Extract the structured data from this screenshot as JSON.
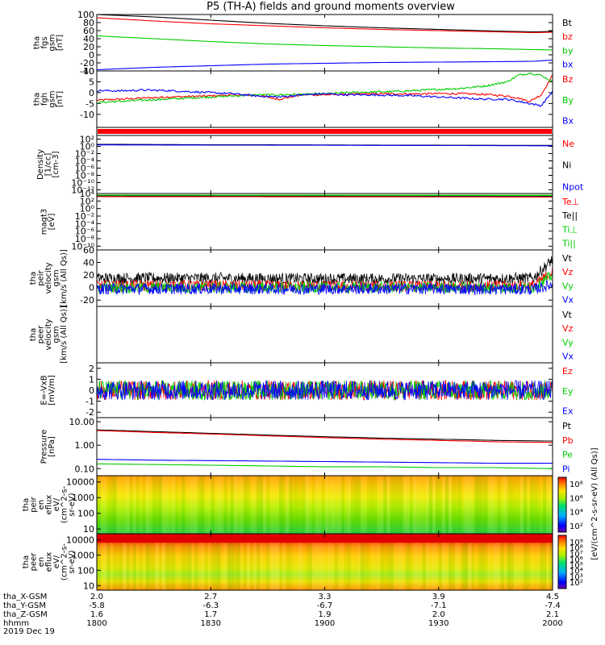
{
  "title": "P5 (TH-A) fields and ground moments overview",
  "chart_data": [
    {
      "type": "line",
      "panel": "fgs_gsm",
      "ylabel": [
        "tha",
        "fgs",
        "gsm",
        "[nT]"
      ],
      "ylim": [
        -40,
        100
      ],
      "yticks": [
        "100",
        "80",
        "60",
        "40",
        "20",
        "0",
        "-20",
        "-40"
      ],
      "ytick_values": [
        100,
        80,
        60,
        40,
        20,
        0,
        -20,
        -40
      ],
      "x": [
        1800,
        1815,
        1830,
        1845,
        1900,
        1915,
        1930,
        1945,
        1955,
        2000
      ],
      "series": [
        {
          "name": "Bt",
          "color": "#000000",
          "values": [
            100,
            94,
            86,
            78,
            72,
            67,
            63,
            59,
            57,
            58
          ]
        },
        {
          "name": "bz",
          "color": "#ff0000",
          "values": [
            92,
            84,
            77,
            72,
            67,
            63,
            60,
            57,
            55,
            56
          ]
        },
        {
          "name": "by",
          "color": "#00cc00",
          "values": [
            47,
            40,
            33,
            27,
            23,
            20,
            17,
            15,
            13,
            12
          ]
        },
        {
          "name": "bx",
          "color": "#0000ff",
          "values": [
            -37,
            -31,
            -27,
            -23,
            -21,
            -19,
            -18,
            -17,
            -16,
            -13
          ]
        }
      ]
    },
    {
      "type": "line",
      "panel": "fgh_gsm",
      "ylabel": [
        "tha",
        "fgh",
        "gsm",
        "[nT]"
      ],
      "ylim": [
        -16,
        10
      ],
      "yticks": [
        "10",
        "5",
        "0",
        "-5",
        "-10"
      ],
      "ytick_values": [
        10,
        5,
        0,
        -5,
        -10
      ],
      "x": [
        1800,
        1806,
        1812,
        1818,
        1824,
        1830,
        1836,
        1842,
        1848,
        1854,
        1900,
        1906,
        1912,
        1918,
        1924,
        1930,
        1936,
        1942,
        1948,
        1951,
        1954,
        1957,
        2000
      ],
      "series": [
        {
          "name": "Bz",
          "color": "#ff0000",
          "values": [
            -3.5,
            -3,
            -2.5,
            -2,
            -1.8,
            -1.5,
            -1,
            -1.2,
            -3,
            -1,
            -1,
            -0.8,
            -0.5,
            -0.5,
            -0.6,
            -0.4,
            -0.5,
            -0.8,
            -1.5,
            -2.5,
            -4,
            -1,
            8
          ]
        },
        {
          "name": "By",
          "color": "#00cc00",
          "values": [
            -4.5,
            -4,
            -3.5,
            -3,
            -2.5,
            -2,
            -1.5,
            -1,
            -1,
            -0.8,
            -0.5,
            0,
            0.3,
            0.5,
            1,
            1.5,
            2,
            3,
            5,
            8,
            9,
            8,
            5
          ]
        },
        {
          "name": "Bx",
          "color": "#0000ff",
          "values": [
            1,
            0.8,
            1.2,
            1,
            0.5,
            0,
            -0.5,
            -1.5,
            -2,
            -1,
            -0.5,
            -1,
            -1,
            -1.2,
            -1.5,
            -2,
            -2.5,
            -3,
            -3,
            -4,
            -5,
            -6,
            0.5
          ]
        }
      ]
    },
    {
      "type": "line",
      "panel": "density",
      "ylabel": [
        "Density",
        "[1/cc]",
        "[cm-3]"
      ],
      "scale": "log",
      "ylim": [
        1e-13,
        1000
      ],
      "yticks": [
        "10²",
        "10⁰",
        "10⁻²",
        "10⁻⁴",
        "10⁻⁶",
        "10⁻⁸",
        "10⁻¹⁰",
        "10⁻¹²"
      ],
      "ytick_values": [
        100,
        1,
        0.01,
        0.0001,
        1e-06,
        1e-08,
        1e-10,
        1e-12
      ],
      "x": [
        1800,
        1830,
        1900,
        1930,
        2000
      ],
      "series": [
        {
          "name": "Ne",
          "color": "#ff0000",
          "values": [
            3,
            2.5,
            2.2,
            1.8,
            1.6
          ]
        },
        {
          "name": "Ni",
          "color": "#000000",
          "values": [
            3.5,
            2.8,
            2.4,
            2,
            1.8
          ]
        },
        {
          "name": "Npot",
          "color": "#0000ff",
          "values": [
            2.5,
            2.2,
            2,
            1.7,
            1.4
          ]
        }
      ]
    },
    {
      "type": "line",
      "panel": "temperature",
      "ylabel": [
        "magt3",
        "[eV]"
      ],
      "scale": "log",
      "ylim": [
        1e-11,
        10000
      ],
      "yticks": [
        "10⁴",
        "10²",
        "10⁰",
        "10⁻²",
        "10⁻⁴",
        "10⁻⁶",
        "10⁻⁸",
        "10⁻¹⁰"
      ],
      "ytick_values": [
        10000,
        100,
        1,
        0.01,
        0.0001,
        1e-06,
        1e-08,
        1e-10
      ],
      "x": [
        1800,
        1830,
        1900,
        1930,
        2000
      ],
      "series": [
        {
          "name": "Te⊥",
          "color": "#ff0000",
          "values": [
            1500,
            1400,
            1300,
            1250,
            1200
          ]
        },
        {
          "name": "Te||",
          "color": "#000000",
          "values": [
            2500,
            2300,
            2200,
            2100,
            2000
          ]
        },
        {
          "name": "Ti⊥",
          "color": "#00cc00",
          "values": [
            4000,
            3800,
            3700,
            3600,
            3500
          ]
        },
        {
          "name": "Ti||",
          "color": "#00cc00",
          "values": [
            3500,
            3300,
            3200,
            3100,
            3000
          ]
        }
      ]
    },
    {
      "type": "line",
      "panel": "peir_velocity",
      "ylabel": [
        "tha",
        "peir",
        "velocity",
        "gsm",
        "[km/s (All Qs)]"
      ],
      "ylim": [
        -30,
        60
      ],
      "yticks": [
        "60",
        "40",
        "20",
        "0",
        "-20"
      ],
      "ytick_values": [
        60,
        40,
        20,
        0,
        -20
      ],
      "x": [
        1800,
        1830,
        1900,
        1930,
        1955,
        2000
      ],
      "series": [
        {
          "name": "Vt",
          "color": "#000000",
          "values": [
            15,
            15,
            14,
            14,
            15,
            45
          ]
        },
        {
          "name": "Vz",
          "color": "#ff0000",
          "values": [
            3,
            3,
            2,
            2,
            3,
            25
          ]
        },
        {
          "name": "Vy",
          "color": "#00cc00",
          "values": [
            0,
            0,
            0,
            0,
            0,
            20
          ]
        },
        {
          "name": "Vx",
          "color": "#0000ff",
          "values": [
            -2,
            -2,
            -2,
            -2,
            -3,
            5
          ]
        }
      ]
    },
    {
      "type": "line",
      "panel": "peer_velocity",
      "ylabel": [
        "tha",
        "peer",
        "velocity",
        "gsm",
        "[km/s (All Qs)]"
      ],
      "series": [
        {
          "name": "Vt",
          "color": "#000000",
          "values": []
        },
        {
          "name": "Vz",
          "color": "#ff0000",
          "values": []
        },
        {
          "name": "Vy",
          "color": "#00cc00",
          "values": []
        },
        {
          "name": "Vx",
          "color": "#0000ff",
          "values": []
        }
      ]
    },
    {
      "type": "line",
      "panel": "e_field",
      "ylabel": [
        "E=-VxB",
        "[mV/m]"
      ],
      "ylim": [
        -2.5,
        2.5
      ],
      "yticks": [
        "2",
        "1",
        "0",
        "-1",
        "-2"
      ],
      "ytick_values": [
        2,
        1,
        0,
        -1,
        -2
      ],
      "x": [
        1800,
        1830,
        1900,
        1930,
        2000
      ],
      "series": [
        {
          "name": "Ez",
          "color": "#ff0000",
          "values": [
            0,
            0,
            0,
            0,
            0
          ]
        },
        {
          "name": "Ey",
          "color": "#00cc00",
          "values": [
            0,
            0,
            0,
            0,
            0
          ]
        },
        {
          "name": "Ex",
          "color": "#0000ff",
          "values": [
            0,
            0,
            0,
            0,
            0
          ]
        }
      ]
    },
    {
      "type": "line",
      "panel": "pressure",
      "ylabel": [
        "Pressure",
        "[nPa]"
      ],
      "scale": "log",
      "ylim": [
        0.05,
        15
      ],
      "yticks": [
        "10.00",
        "1.00",
        "0.10"
      ],
      "ytick_values": [
        10,
        1,
        0.1
      ],
      "x": [
        1800,
        1815,
        1830,
        1845,
        1900,
        1915,
        1930,
        1945,
        2000
      ],
      "series": [
        {
          "name": "Pt",
          "color": "#000000",
          "values": [
            4.5,
            3.8,
            3.2,
            2.7,
            2.3,
            2.0,
            1.8,
            1.6,
            1.5
          ]
        },
        {
          "name": "Pb",
          "color": "#ff0000",
          "values": [
            4.2,
            3.5,
            3.0,
            2.5,
            2.1,
            1.8,
            1.6,
            1.4,
            1.3
          ]
        },
        {
          "name": "Pe",
          "color": "#00cc00",
          "values": [
            0.16,
            0.15,
            0.14,
            0.13,
            0.12,
            0.12,
            0.11,
            0.11,
            0.1
          ]
        },
        {
          "name": "Pi",
          "color": "#0000ff",
          "values": [
            0.25,
            0.23,
            0.22,
            0.21,
            0.2,
            0.19,
            0.18,
            0.17,
            0.17
          ]
        }
      ]
    },
    {
      "type": "heatmap",
      "panel": "peir_en_eflux",
      "ylabel": [
        "tha",
        "peir",
        "en",
        "eflux",
        "eV/",
        "(cm^2-s-",
        "sr-eV)"
      ],
      "scale": "log",
      "ylim": [
        5,
        25000
      ],
      "yticks": [
        "10000",
        "1000",
        "100",
        "10"
      ],
      "ytick_values": [
        10000,
        1000,
        100,
        10
      ],
      "colorbar_ticks": [
        "10⁸",
        "10⁶",
        "10⁴",
        "10²"
      ]
    },
    {
      "type": "heatmap",
      "panel": "peer_en_eflux",
      "ylabel": [
        "tha",
        "peer",
        "en",
        "eflux",
        "eV/",
        "(cm^2-s-",
        "sr-eV)"
      ],
      "scale": "log",
      "ylim": [
        5,
        25000
      ],
      "yticks": [
        "10000",
        "1000",
        "100",
        "10"
      ],
      "ytick_values": [
        10000,
        1000,
        100,
        10
      ],
      "colorbar_ticks": [
        "10⁹",
        "10⁸",
        "10⁷",
        "10⁶",
        "10⁵",
        "10⁴",
        "10³",
        "10²"
      ]
    }
  ],
  "colorbar_label": "[eV/(cm^2-s-sr-eV) (All Qs)]",
  "colorbar_label_2": "[eV/(cm^2-s-sr-eV) (All Qs)]",
  "xaxis": {
    "row_labels": [
      "tha_X-GSM",
      "tha_Y-GSM",
      "tha_Z-GSM",
      "hhmm",
      "2019 Dec 19"
    ],
    "x_ticks": [
      1800,
      1830,
      1900,
      1930,
      2000
    ],
    "columns": [
      [
        "2.0",
        "-5.8",
        "1.6",
        "1800"
      ],
      [
        "2.7",
        "-6.3",
        "1.7",
        "1830"
      ],
      [
        "3.3",
        "-6.7",
        "1.9",
        "1900"
      ],
      [
        "3.9",
        "-7.1",
        "2.0",
        "1930"
      ],
      [
        "4.5",
        "-7.4",
        "2.1",
        "2000"
      ]
    ]
  }
}
